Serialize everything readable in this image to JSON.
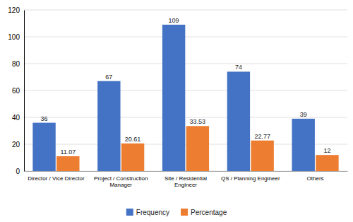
{
  "chart_data": {
    "type": "bar",
    "categories": [
      "Director / Vice Director",
      "Project / Construction\nManager",
      "Site / Residential\nEngineer",
      "QS / Planning Engineer",
      "Others"
    ],
    "series": [
      {
        "name": "Frequency",
        "color": "#4472c4",
        "values": [
          36,
          67,
          109,
          74,
          39
        ]
      },
      {
        "name": "Percentage",
        "color": "#ed7d31",
        "values": [
          11.07,
          20.61,
          33.53,
          22.77,
          12
        ]
      }
    ],
    "ylim": [
      0,
      120
    ],
    "yticks": [
      0,
      20,
      40,
      60,
      80,
      100,
      120
    ],
    "grid": true,
    "legend": "bottom",
    "data_labels": true
  }
}
